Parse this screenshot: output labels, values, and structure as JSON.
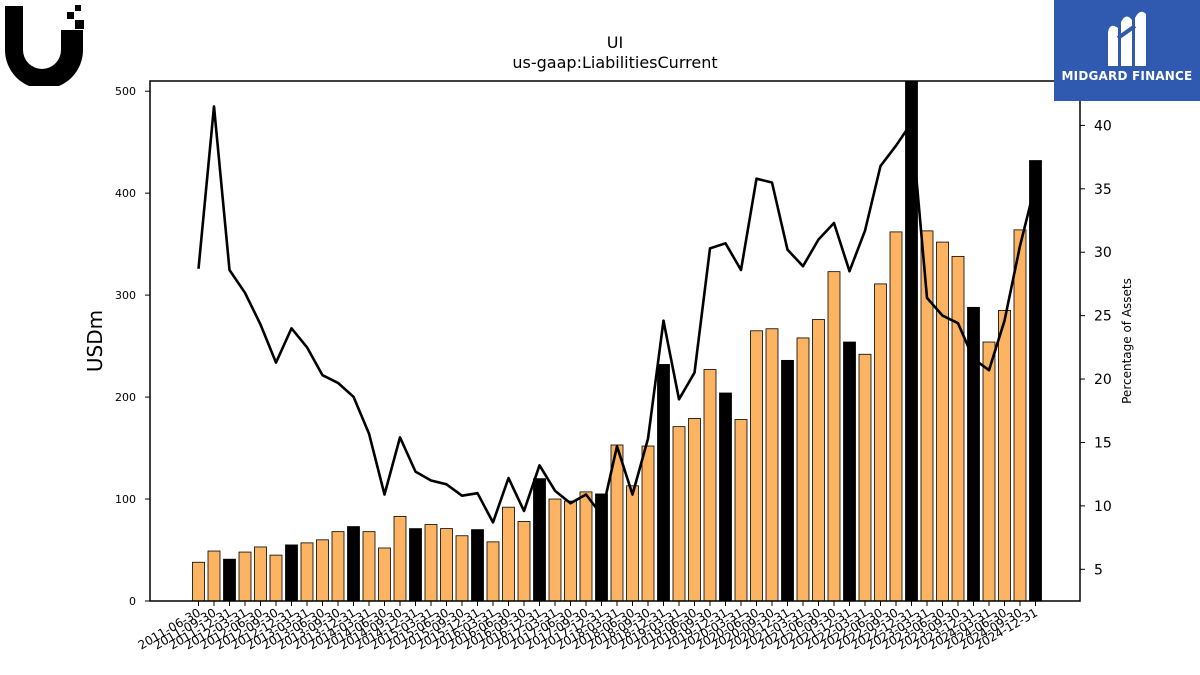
{
  "brand": {
    "left_logo_name": "ubiquiti-logo",
    "right_logo_text": "MIDGARD FINANCE"
  },
  "chart_data": {
    "type": "bar",
    "title": "UI",
    "subtitle": "us-gaap:LiabilitiesCurrent",
    "ylabel": "USDm",
    "y2label": "Percentage of Assets",
    "ylim": [
      0,
      510
    ],
    "y2lim": [
      2.5,
      43.5
    ],
    "yticks": [
      0,
      100,
      200,
      300,
      400,
      500
    ],
    "y2ticks": [
      5,
      10,
      15,
      20,
      25,
      30,
      35,
      40
    ],
    "colors": {
      "bar": "#fdb462",
      "bar_highlight": "#000000",
      "line": "#000000"
    },
    "categories": [
      "2011-06-30",
      "2011-09-30",
      "2011-12-31",
      "2012-03-31",
      "2012-06-30",
      "2012-09-30",
      "2012-12-31",
      "2013-03-31",
      "2013-06-30",
      "2013-09-30",
      "2013-12-31",
      "2014-03-31",
      "2014-06-30",
      "2014-09-30",
      "2014-12-31",
      "2015-03-31",
      "2015-06-30",
      "2015-09-30",
      "2015-12-31",
      "2016-03-31",
      "2016-06-30",
      "2016-09-30",
      "2016-12-31",
      "2017-03-31",
      "2017-06-30",
      "2017-09-30",
      "2017-12-31",
      "2018-03-31",
      "2018-06-30",
      "2018-09-30",
      "2018-12-31",
      "2019-03-31",
      "2019-06-30",
      "2019-09-30",
      "2019-12-31",
      "2020-03-31",
      "2020-06-30",
      "2020-09-30",
      "2020-12-31",
      "2021-03-31",
      "2021-06-30",
      "2021-09-30",
      "2021-12-31",
      "2022-03-31",
      "2022-06-30",
      "2022-09-30",
      "2022-12-31",
      "2023-03-31",
      "2023-06-30",
      "2023-09-30",
      "2023-12-31",
      "2024-03-31",
      "2024-06-30",
      "2024-09-30",
      "2024-12-31"
    ],
    "series": [
      {
        "values": [
          38,
          49,
          41,
          48,
          53,
          45,
          55,
          57,
          60,
          68,
          73,
          68,
          52,
          83,
          71,
          75,
          71,
          64,
          70,
          58,
          92,
          78,
          120,
          100,
          98,
          107,
          105,
          153,
          113,
          152,
          232,
          171,
          179,
          227,
          204,
          178,
          265,
          267,
          236,
          258,
          276,
          323,
          254,
          242,
          311,
          362,
          510,
          363,
          352,
          338,
          288,
          254,
          285,
          364,
          432
        ],
        "highlight": [
          false,
          false,
          true,
          false,
          false,
          false,
          true,
          false,
          false,
          false,
          true,
          false,
          false,
          false,
          true,
          false,
          false,
          false,
          true,
          false,
          false,
          false,
          true,
          false,
          false,
          false,
          true,
          false,
          false,
          false,
          true,
          false,
          false,
          false,
          true,
          false,
          false,
          false,
          true,
          false,
          false,
          false,
          true,
          false,
          false,
          false,
          true,
          false,
          false,
          false,
          true,
          false,
          false,
          false,
          true
        ]
      },
      {
        "axis": "right",
        "type": "line",
        "values": [
          28.7,
          41.5,
          28.6,
          26.8,
          24.3,
          21.3,
          24.0,
          22.5,
          20.3,
          19.7,
          18.6,
          15.7,
          10.9,
          15.4,
          12.7,
          12.0,
          11.7,
          10.8,
          11.0,
          8.7,
          12.2,
          9.6,
          13.2,
          11.2,
          10.2,
          10.9,
          9.3,
          14.7,
          10.9,
          15.3,
          24.6,
          18.4,
          20.5,
          30.3,
          30.7,
          28.6,
          35.8,
          35.5,
          30.2,
          28.9,
          31.0,
          32.3,
          28.5,
          31.7,
          36.8,
          38.4,
          40.2,
          26.4,
          25.0,
          24.4,
          21.6,
          20.7,
          24.6,
          30.5,
          35.4
        ]
      }
    ]
  }
}
